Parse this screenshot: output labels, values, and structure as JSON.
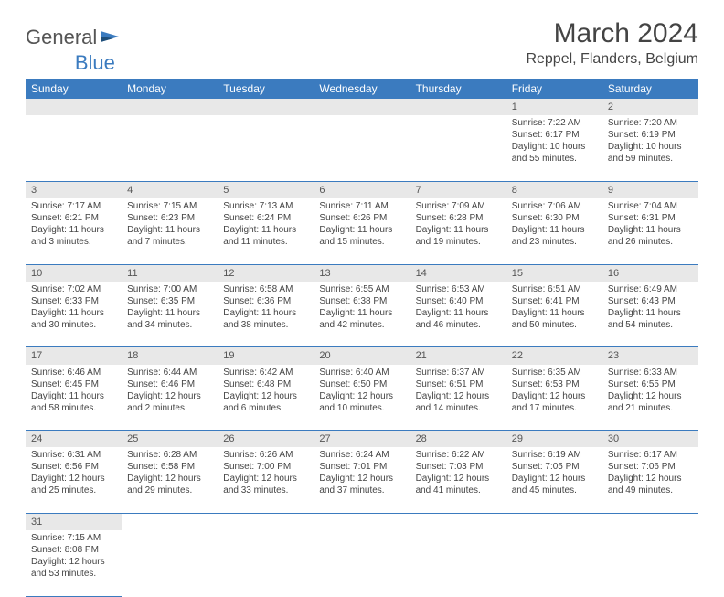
{
  "brand": {
    "word1": "General",
    "word2": "Blue"
  },
  "title": {
    "month": "March 2024",
    "location": "Reppel, Flanders, Belgium"
  },
  "colors": {
    "header_bg": "#3b7bbf",
    "header_fg": "#ffffff",
    "daynum_bg": "#e8e8e8",
    "row_divider": "#3b7bbf",
    "text": "#444444"
  },
  "weekdays": [
    "Sunday",
    "Monday",
    "Tuesday",
    "Wednesday",
    "Thursday",
    "Friday",
    "Saturday"
  ],
  "weeks": [
    [
      null,
      null,
      null,
      null,
      null,
      {
        "n": "1",
        "sunrise": "Sunrise: 7:22 AM",
        "sunset": "Sunset: 6:17 PM",
        "day1": "Daylight: 10 hours",
        "day2": "and 55 minutes."
      },
      {
        "n": "2",
        "sunrise": "Sunrise: 7:20 AM",
        "sunset": "Sunset: 6:19 PM",
        "day1": "Daylight: 10 hours",
        "day2": "and 59 minutes."
      }
    ],
    [
      {
        "n": "3",
        "sunrise": "Sunrise: 7:17 AM",
        "sunset": "Sunset: 6:21 PM",
        "day1": "Daylight: 11 hours",
        "day2": "and 3 minutes."
      },
      {
        "n": "4",
        "sunrise": "Sunrise: 7:15 AM",
        "sunset": "Sunset: 6:23 PM",
        "day1": "Daylight: 11 hours",
        "day2": "and 7 minutes."
      },
      {
        "n": "5",
        "sunrise": "Sunrise: 7:13 AM",
        "sunset": "Sunset: 6:24 PM",
        "day1": "Daylight: 11 hours",
        "day2": "and 11 minutes."
      },
      {
        "n": "6",
        "sunrise": "Sunrise: 7:11 AM",
        "sunset": "Sunset: 6:26 PM",
        "day1": "Daylight: 11 hours",
        "day2": "and 15 minutes."
      },
      {
        "n": "7",
        "sunrise": "Sunrise: 7:09 AM",
        "sunset": "Sunset: 6:28 PM",
        "day1": "Daylight: 11 hours",
        "day2": "and 19 minutes."
      },
      {
        "n": "8",
        "sunrise": "Sunrise: 7:06 AM",
        "sunset": "Sunset: 6:30 PM",
        "day1": "Daylight: 11 hours",
        "day2": "and 23 minutes."
      },
      {
        "n": "9",
        "sunrise": "Sunrise: 7:04 AM",
        "sunset": "Sunset: 6:31 PM",
        "day1": "Daylight: 11 hours",
        "day2": "and 26 minutes."
      }
    ],
    [
      {
        "n": "10",
        "sunrise": "Sunrise: 7:02 AM",
        "sunset": "Sunset: 6:33 PM",
        "day1": "Daylight: 11 hours",
        "day2": "and 30 minutes."
      },
      {
        "n": "11",
        "sunrise": "Sunrise: 7:00 AM",
        "sunset": "Sunset: 6:35 PM",
        "day1": "Daylight: 11 hours",
        "day2": "and 34 minutes."
      },
      {
        "n": "12",
        "sunrise": "Sunrise: 6:58 AM",
        "sunset": "Sunset: 6:36 PM",
        "day1": "Daylight: 11 hours",
        "day2": "and 38 minutes."
      },
      {
        "n": "13",
        "sunrise": "Sunrise: 6:55 AM",
        "sunset": "Sunset: 6:38 PM",
        "day1": "Daylight: 11 hours",
        "day2": "and 42 minutes."
      },
      {
        "n": "14",
        "sunrise": "Sunrise: 6:53 AM",
        "sunset": "Sunset: 6:40 PM",
        "day1": "Daylight: 11 hours",
        "day2": "and 46 minutes."
      },
      {
        "n": "15",
        "sunrise": "Sunrise: 6:51 AM",
        "sunset": "Sunset: 6:41 PM",
        "day1": "Daylight: 11 hours",
        "day2": "and 50 minutes."
      },
      {
        "n": "16",
        "sunrise": "Sunrise: 6:49 AM",
        "sunset": "Sunset: 6:43 PM",
        "day1": "Daylight: 11 hours",
        "day2": "and 54 minutes."
      }
    ],
    [
      {
        "n": "17",
        "sunrise": "Sunrise: 6:46 AM",
        "sunset": "Sunset: 6:45 PM",
        "day1": "Daylight: 11 hours",
        "day2": "and 58 minutes."
      },
      {
        "n": "18",
        "sunrise": "Sunrise: 6:44 AM",
        "sunset": "Sunset: 6:46 PM",
        "day1": "Daylight: 12 hours",
        "day2": "and 2 minutes."
      },
      {
        "n": "19",
        "sunrise": "Sunrise: 6:42 AM",
        "sunset": "Sunset: 6:48 PM",
        "day1": "Daylight: 12 hours",
        "day2": "and 6 minutes."
      },
      {
        "n": "20",
        "sunrise": "Sunrise: 6:40 AM",
        "sunset": "Sunset: 6:50 PM",
        "day1": "Daylight: 12 hours",
        "day2": "and 10 minutes."
      },
      {
        "n": "21",
        "sunrise": "Sunrise: 6:37 AM",
        "sunset": "Sunset: 6:51 PM",
        "day1": "Daylight: 12 hours",
        "day2": "and 14 minutes."
      },
      {
        "n": "22",
        "sunrise": "Sunrise: 6:35 AM",
        "sunset": "Sunset: 6:53 PM",
        "day1": "Daylight: 12 hours",
        "day2": "and 17 minutes."
      },
      {
        "n": "23",
        "sunrise": "Sunrise: 6:33 AM",
        "sunset": "Sunset: 6:55 PM",
        "day1": "Daylight: 12 hours",
        "day2": "and 21 minutes."
      }
    ],
    [
      {
        "n": "24",
        "sunrise": "Sunrise: 6:31 AM",
        "sunset": "Sunset: 6:56 PM",
        "day1": "Daylight: 12 hours",
        "day2": "and 25 minutes."
      },
      {
        "n": "25",
        "sunrise": "Sunrise: 6:28 AM",
        "sunset": "Sunset: 6:58 PM",
        "day1": "Daylight: 12 hours",
        "day2": "and 29 minutes."
      },
      {
        "n": "26",
        "sunrise": "Sunrise: 6:26 AM",
        "sunset": "Sunset: 7:00 PM",
        "day1": "Daylight: 12 hours",
        "day2": "and 33 minutes."
      },
      {
        "n": "27",
        "sunrise": "Sunrise: 6:24 AM",
        "sunset": "Sunset: 7:01 PM",
        "day1": "Daylight: 12 hours",
        "day2": "and 37 minutes."
      },
      {
        "n": "28",
        "sunrise": "Sunrise: 6:22 AM",
        "sunset": "Sunset: 7:03 PM",
        "day1": "Daylight: 12 hours",
        "day2": "and 41 minutes."
      },
      {
        "n": "29",
        "sunrise": "Sunrise: 6:19 AM",
        "sunset": "Sunset: 7:05 PM",
        "day1": "Daylight: 12 hours",
        "day2": "and 45 minutes."
      },
      {
        "n": "30",
        "sunrise": "Sunrise: 6:17 AM",
        "sunset": "Sunset: 7:06 PM",
        "day1": "Daylight: 12 hours",
        "day2": "and 49 minutes."
      }
    ],
    [
      {
        "n": "31",
        "sunrise": "Sunrise: 7:15 AM",
        "sunset": "Sunset: 8:08 PM",
        "day1": "Daylight: 12 hours",
        "day2": "and 53 minutes."
      },
      null,
      null,
      null,
      null,
      null,
      null
    ]
  ]
}
